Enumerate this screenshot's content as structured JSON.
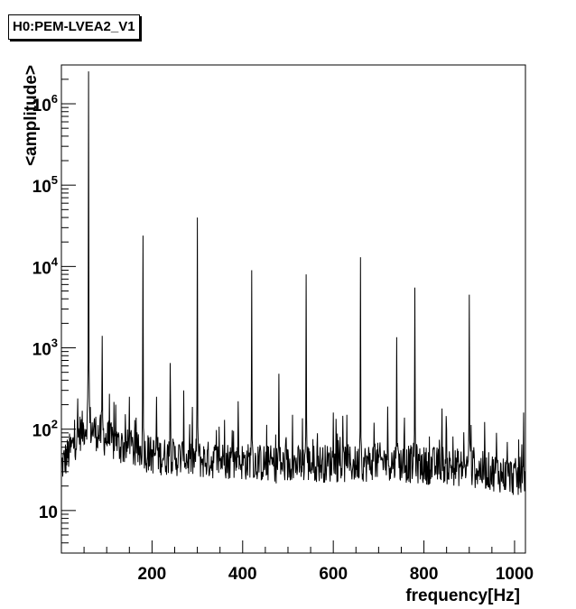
{
  "chart_data": {
    "type": "line",
    "title": "H0:PEM-LVEA2_V1",
    "xlabel": "frequency[Hz]",
    "ylabel": "<amplitude>",
    "xlim": [
      0,
      1024
    ],
    "ylim": [
      3,
      3000000
    ],
    "yscale": "log",
    "grid": false,
    "x_ticks": [
      200,
      400,
      600,
      800,
      1000
    ],
    "x_tick_labels": [
      "200",
      "400",
      "600",
      "800",
      "1000"
    ],
    "y_ticks": [
      10,
      100,
      1000,
      10000,
      100000,
      1000000
    ],
    "y_tick_labels": [
      {
        "base": "10",
        "exp": ""
      },
      {
        "base": "10",
        "exp": "2"
      },
      {
        "base": "10",
        "exp": "3"
      },
      {
        "base": "10",
        "exp": "4"
      },
      {
        "base": "10",
        "exp": "5"
      },
      {
        "base": "10",
        "exp": "6"
      }
    ],
    "noise_floor": [
      [
        0,
        35
      ],
      [
        20,
        55
      ],
      [
        40,
        90
      ],
      [
        55,
        110
      ],
      [
        80,
        90
      ],
      [
        120,
        65
      ],
      [
        160,
        55
      ],
      [
        200,
        48
      ],
      [
        250,
        45
      ],
      [
        300,
        42
      ],
      [
        350,
        42
      ],
      [
        400,
        40
      ],
      [
        450,
        38
      ],
      [
        500,
        36
      ],
      [
        550,
        38
      ],
      [
        600,
        38
      ],
      [
        650,
        37
      ],
      [
        700,
        40
      ],
      [
        750,
        38
      ],
      [
        800,
        36
      ],
      [
        850,
        35
      ],
      [
        900,
        33
      ],
      [
        950,
        30
      ],
      [
        1000,
        26
      ],
      [
        1024,
        22
      ]
    ],
    "peaks": [
      {
        "x": 60,
        "y": 2500000
      },
      {
        "x": 90,
        "y": 1400
      },
      {
        "x": 120,
        "y": 200
      },
      {
        "x": 150,
        "y": 250
      },
      {
        "x": 180,
        "y": 24000
      },
      {
        "x": 210,
        "y": 250
      },
      {
        "x": 240,
        "y": 650
      },
      {
        "x": 270,
        "y": 300
      },
      {
        "x": 300,
        "y": 40000
      },
      {
        "x": 360,
        "y": 130
      },
      {
        "x": 390,
        "y": 220
      },
      {
        "x": 420,
        "y": 9000
      },
      {
        "x": 480,
        "y": 480
      },
      {
        "x": 510,
        "y": 150
      },
      {
        "x": 540,
        "y": 8000
      },
      {
        "x": 600,
        "y": 160
      },
      {
        "x": 630,
        "y": 150
      },
      {
        "x": 660,
        "y": 13000
      },
      {
        "x": 690,
        "y": 120
      },
      {
        "x": 720,
        "y": 190
      },
      {
        "x": 740,
        "y": 1350
      },
      {
        "x": 780,
        "y": 5500
      },
      {
        "x": 840,
        "y": 180
      },
      {
        "x": 900,
        "y": 4500
      },
      {
        "x": 960,
        "y": 90
      },
      {
        "x": 1020,
        "y": 160
      }
    ]
  }
}
